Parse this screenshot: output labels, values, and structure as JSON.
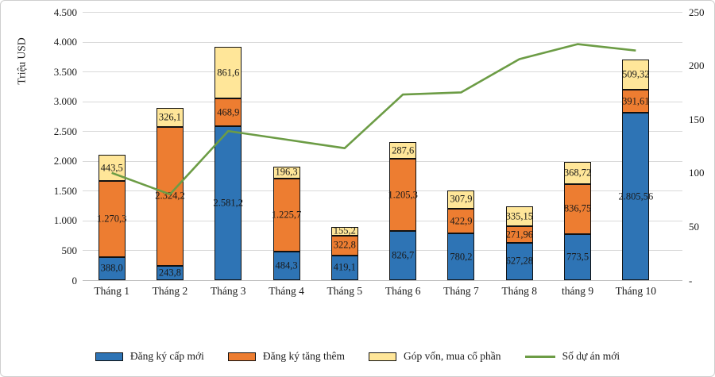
{
  "chart_data": {
    "type": "bar",
    "subtype": "stacked-bar-with-line",
    "title": "",
    "ylabel_left": "Triệu USD",
    "categories": [
      "Tháng 1",
      "Tháng 2",
      "Tháng 3",
      "Tháng 4",
      "Tháng 5",
      "Tháng 6",
      "Tháng 7",
      "Tháng 8",
      "tháng 9",
      "Tháng 10"
    ],
    "series": [
      {
        "name": "Đăng ký cấp mới",
        "type": "bar",
        "color": "#2E74B5",
        "values": [
          388.0,
          243.8,
          2581.2,
          484.3,
          419.1,
          826.7,
          780.2,
          627.28,
          773.5,
          2805.56
        ],
        "labels": [
          "388,0",
          "243,8",
          "2.581,2",
          "484,3",
          "419,1",
          "826,7",
          "780,2",
          "627,28",
          "773,5",
          "2.805,56"
        ]
      },
      {
        "name": "Đăng ký tăng thêm",
        "type": "bar",
        "color": "#ED7D31",
        "values": [
          1270.3,
          2324.2,
          468.9,
          1225.7,
          322.8,
          1205.3,
          422.9,
          271.96,
          836.75,
          391.61
        ],
        "labels": [
          "1.270,3",
          "2.324,2",
          "468,9",
          "1.225,7",
          "322,8",
          "1.205,3",
          "422,9",
          "271,96",
          "836,75",
          "391,61"
        ]
      },
      {
        "name": "Góp vốn, mua cổ phần",
        "type": "bar",
        "color": "#FFE699",
        "values": [
          443.5,
          326.1,
          861.6,
          196.3,
          155.2,
          287.6,
          307.9,
          335.15,
          368.72,
          509.32
        ],
        "labels": [
          "443,5",
          "326,1",
          "861,6",
          "196,3",
          "155,2",
          "287,6",
          "307,9",
          "335,15",
          "368,72",
          "509,32"
        ]
      },
      {
        "name": "Số dự án mới",
        "type": "line",
        "color": "#6C9C45",
        "axis": "right",
        "values": [
          100,
          80,
          139,
          131,
          123,
          173,
          175,
          206,
          220,
          214
        ]
      }
    ],
    "axes": {
      "left": {
        "min": 0,
        "max": 4500,
        "tick_step": 500,
        "ticks": [
          "0",
          "500",
          "1.000",
          "1.500",
          "2.000",
          "2.500",
          "3.000",
          "3.500",
          "4.000",
          "4.500"
        ]
      },
      "right": {
        "min": 0,
        "max": 250,
        "tick_step": 50,
        "ticks": [
          "-",
          "50",
          "100",
          "150",
          "200",
          "250"
        ]
      }
    },
    "grid": true,
    "legend_position": "bottom"
  }
}
